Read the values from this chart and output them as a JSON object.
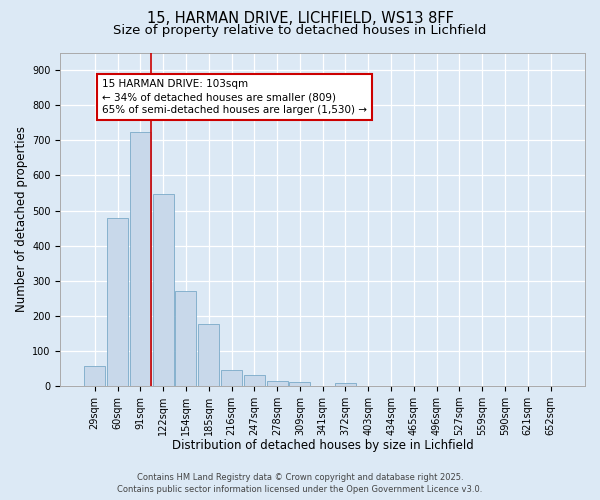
{
  "title_line1": "15, HARMAN DRIVE, LICHFIELD, WS13 8FF",
  "title_line2": "Size of property relative to detached houses in Lichfield",
  "xlabel": "Distribution of detached houses by size in Lichfield",
  "ylabel": "Number of detached properties",
  "categories": [
    "29sqm",
    "60sqm",
    "91sqm",
    "122sqm",
    "154sqm",
    "185sqm",
    "216sqm",
    "247sqm",
    "278sqm",
    "309sqm",
    "341sqm",
    "372sqm",
    "403sqm",
    "434sqm",
    "465sqm",
    "496sqm",
    "527sqm",
    "559sqm",
    "590sqm",
    "621sqm",
    "652sqm"
  ],
  "values": [
    58,
    480,
    725,
    548,
    270,
    178,
    46,
    33,
    15,
    12,
    0,
    8,
    0,
    0,
    0,
    0,
    0,
    0,
    0,
    0,
    0
  ],
  "bar_color": "#c8d8ea",
  "bar_edge_color": "#7aaac8",
  "vline_color": "#cc0000",
  "vline_x_index": 2,
  "annotation_text": "15 HARMAN DRIVE: 103sqm\n← 34% of detached houses are smaller (809)\n65% of semi-detached houses are larger (1,530) →",
  "box_edge_color": "#cc0000",
  "box_face_color": "#ffffff",
  "ylim": [
    0,
    950
  ],
  "yticks": [
    0,
    100,
    200,
    300,
    400,
    500,
    600,
    700,
    800,
    900
  ],
  "background_color": "#dce9f5",
  "footer_text": "Contains HM Land Registry data © Crown copyright and database right 2025.\nContains public sector information licensed under the Open Government Licence v3.0.",
  "title_fontsize": 10.5,
  "subtitle_fontsize": 9.5,
  "axis_label_fontsize": 8.5,
  "tick_fontsize": 7,
  "annotation_fontsize": 7.5,
  "footer_fontsize": 6
}
